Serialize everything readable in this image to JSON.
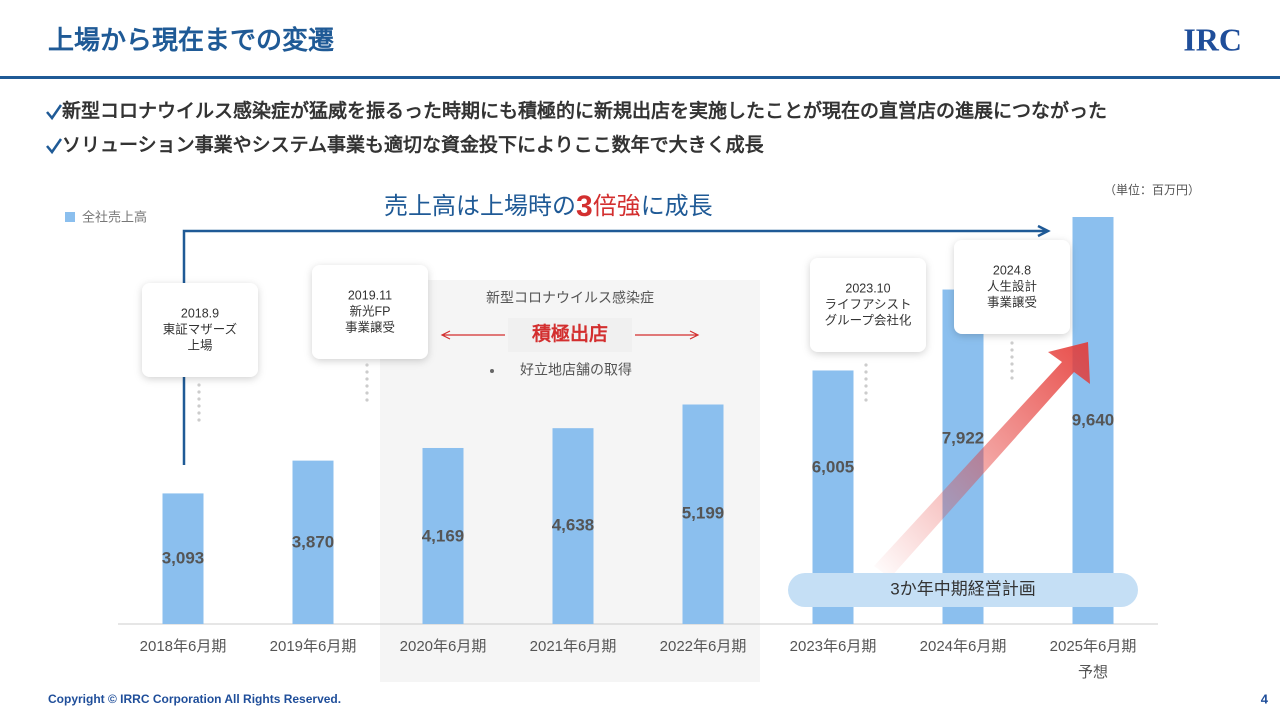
{
  "title": "上場から現在までの変遷",
  "logo": "IRC",
  "bullets": [
    "新型コロナウイルス感染症が猛威を振るった時期にも積極的に新規出店を実施したことが現在の直営店の進展につながった",
    "ソリューション事業やシステム事業も適切な資金投下によりここ数年で大きく成長"
  ],
  "headline": [
    "売上高は上場時の",
    "3",
    "倍強",
    "に成長"
  ],
  "unit": "（単位：百万円）",
  "forecast_note": "予想",
  "callouts": [
    [
      "2018.9",
      "東証マザーズ",
      "上場"
    ],
    [
      "2019.11",
      "新光FP",
      "事業譲受"
    ],
    [
      "2023.10",
      "ライフアシスト",
      "グループ会社化"
    ],
    [
      "2024.8",
      "人生設計",
      "事業譲受"
    ]
  ],
  "covid": {
    "title": "新型コロナウイルス感染症",
    "emphasis": "積極出店",
    "bullet": "好立地店舗の取得"
  },
  "plan": "3か年中期経営計画",
  "footer": "Copyright © IRRC Corporation All Rights Reserved.",
  "page_number": "4",
  "chart_data": {
    "type": "bar",
    "categories": [
      "2018年6月期",
      "2019年6月期",
      "2020年6月期",
      "2021年6月期",
      "2022年6月期",
      "2023年6月期",
      "2024年6月期",
      "2025年6月期"
    ],
    "series": [
      {
        "name": "全社売上高",
        "color": "#8bbfee",
        "values": [
          3093,
          3870,
          4169,
          4638,
          5199,
          6005,
          7922,
          9640
        ],
        "value_labels": [
          "3,093",
          "3,870",
          "4,169",
          "4,638",
          "5,199",
          "6,005",
          "7,922",
          "9,640"
        ]
      }
    ]
  }
}
